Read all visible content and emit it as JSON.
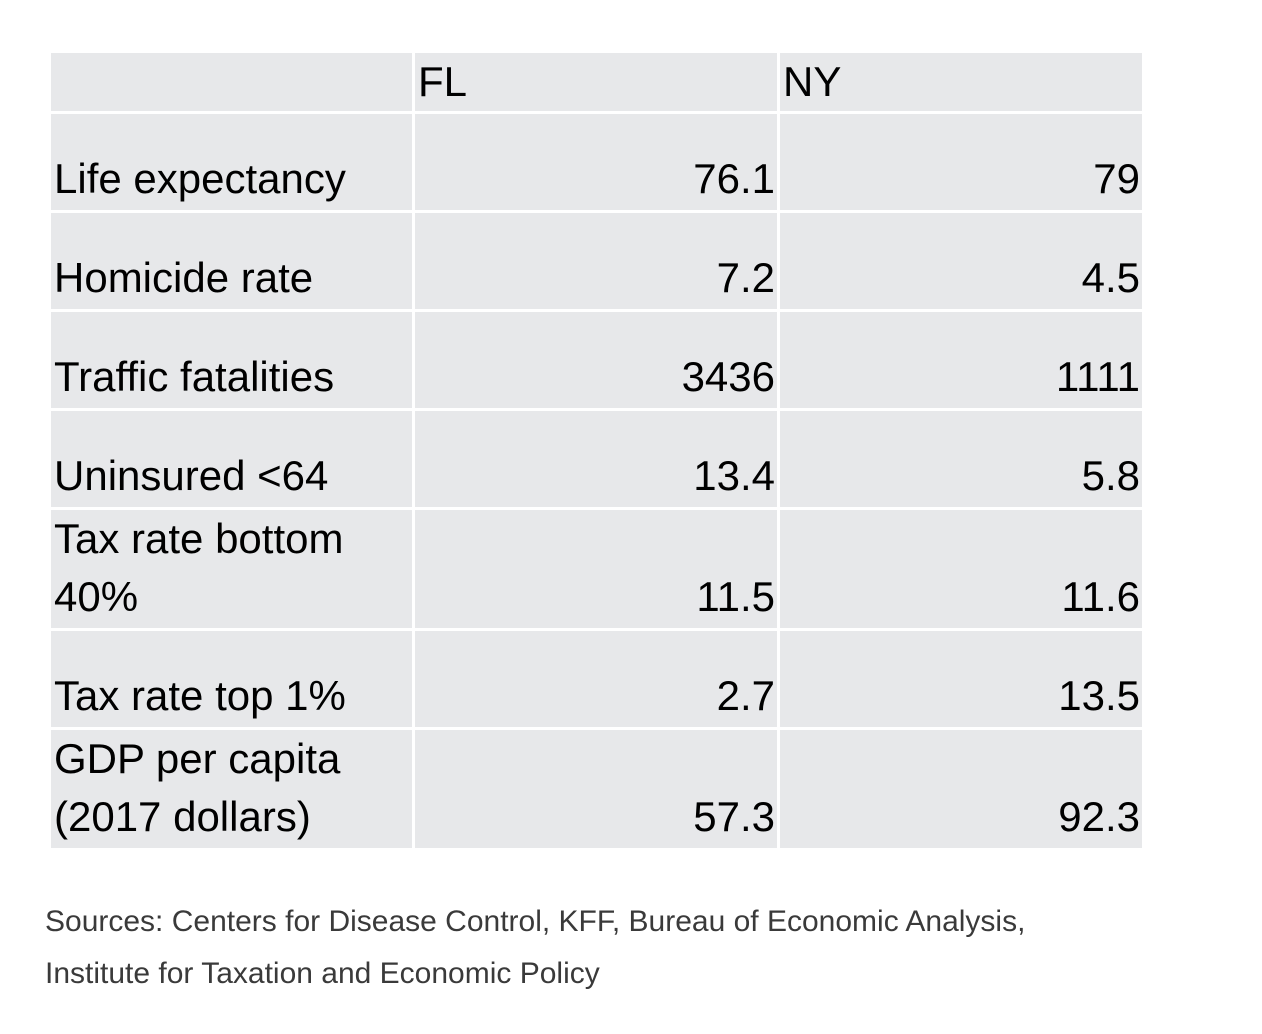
{
  "table": {
    "headers": [
      "",
      "FL",
      "NY"
    ],
    "rows": [
      {
        "label": "Life expectancy",
        "fl": "76.1",
        "ny": "79",
        "lines": 1
      },
      {
        "label": "Homicide rate",
        "fl": "7.2",
        "ny": "4.5",
        "lines": 1
      },
      {
        "label": "Traffic fatalities",
        "fl": "3436",
        "ny": "1111",
        "lines": 1
      },
      {
        "label": "Uninsured <64",
        "fl": "13.4",
        "ny": "5.8",
        "lines": 1
      },
      {
        "label": "Tax rate bottom\n40%",
        "fl": "11.5",
        "ny": "11.6",
        "lines": 2
      },
      {
        "label": "Tax rate top 1%",
        "fl": "2.7",
        "ny": "13.5",
        "lines": 1
      },
      {
        "label": "GDP per capita\n(2017 dollars)",
        "fl": "57.3",
        "ny": "92.3",
        "lines": 2
      }
    ]
  },
  "sources": {
    "line1": "Sources: Centers for Disease Control, KFF, Bureau of Economic Analysis,",
    "line2": "Institute for Taxation and Economic Policy"
  },
  "colors": {
    "cell_background": "#e7e8ea",
    "grid_lines": "#ffffff",
    "sources_text": "#3a3a3a"
  }
}
